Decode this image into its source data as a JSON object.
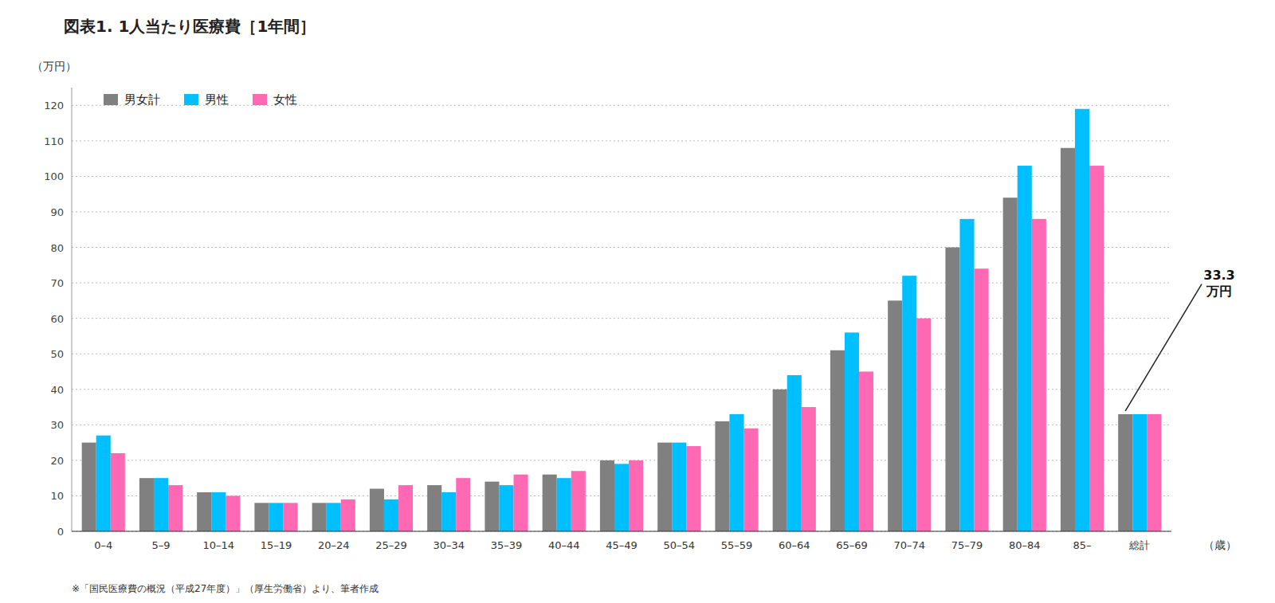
{
  "chart_data": {
    "type": "bar",
    "title": "図表1.  1人当たり医療費［1年間］",
    "ylabel": "（万円）",
    "xlabel": "（歳）",
    "note": "※「国民医療費の概況（平成27年度）」（厚生労働省）より、筆者作成",
    "categories": [
      "0–4",
      "5–9",
      "10–14",
      "15–19",
      "20–24",
      "25–29",
      "30–34",
      "35–39",
      "40–44",
      "45–49",
      "50–54",
      "55–59",
      "60–64",
      "65–69",
      "70–74",
      "75–79",
      "80–84",
      "85–",
      "総計"
    ],
    "series": [
      {
        "name": "男女計",
        "color": "#808080",
        "values": [
          25,
          15,
          11,
          8,
          8,
          12,
          13,
          14,
          16,
          20,
          25,
          31,
          40,
          51,
          65,
          80,
          94,
          108,
          33
        ]
      },
      {
        "name": "男性",
        "color": "#00bfff",
        "values": [
          27,
          15,
          11,
          8,
          8,
          9,
          11,
          13,
          15,
          19,
          25,
          33,
          44,
          56,
          72,
          88,
          103,
          119,
          33
        ]
      },
      {
        "name": "女性",
        "color": "#ff69b4",
        "values": [
          22,
          13,
          10,
          8,
          9,
          13,
          15,
          16,
          17,
          20,
          24,
          29,
          35,
          45,
          60,
          74,
          88,
          103,
          33
        ]
      }
    ],
    "ylim": [
      0,
      125
    ],
    "yticks": [
      0,
      10,
      20,
      30,
      40,
      50,
      60,
      70,
      80,
      90,
      100,
      110,
      120
    ],
    "grid": true,
    "legend": "upper left",
    "annotations": [
      {
        "text": "33.3\n万円",
        "category": "総計",
        "series": "男女計"
      }
    ]
  }
}
